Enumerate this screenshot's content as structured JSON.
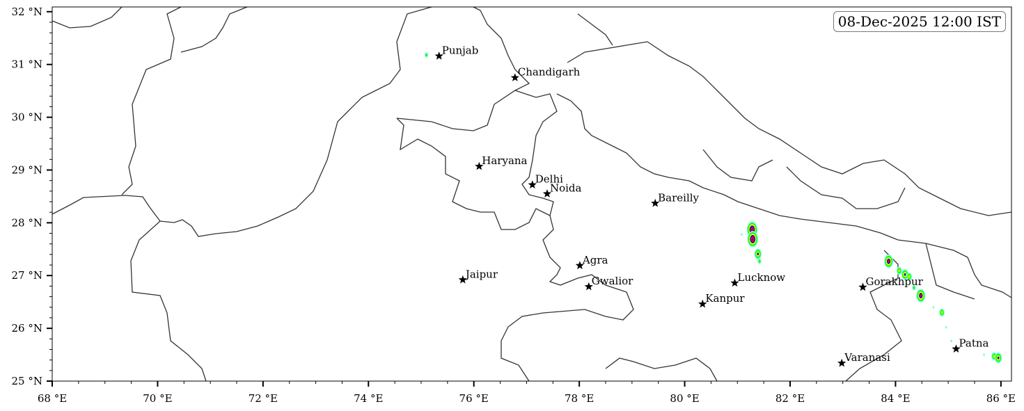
{
  "map": {
    "timestamp": "08-Dec-2025 12:00 IST",
    "extent": {
      "lon": [
        68,
        86.2
      ],
      "lat": [
        25,
        32.09
      ]
    },
    "x_ticks": [
      {
        "v": 68,
        "label": "68 °E"
      },
      {
        "v": 70,
        "label": "70 °E"
      },
      {
        "v": 72,
        "label": "72 °E"
      },
      {
        "v": 74,
        "label": "74 °E"
      },
      {
        "v": 76,
        "label": "76 °E"
      },
      {
        "v": 78,
        "label": "78 °E"
      },
      {
        "v": 80,
        "label": "80 °E"
      },
      {
        "v": 82,
        "label": "82 °E"
      },
      {
        "v": 84,
        "label": "84 °E"
      },
      {
        "v": 86,
        "label": "86 °E"
      }
    ],
    "y_ticks": [
      {
        "v": 25,
        "label": "25 °N"
      },
      {
        "v": 26,
        "label": "26 °N"
      },
      {
        "v": 27,
        "label": "27 °N"
      },
      {
        "v": 28,
        "label": "28 °N"
      },
      {
        "v": 29,
        "label": "29 °N"
      },
      {
        "v": 30,
        "label": "30 °N"
      },
      {
        "v": 31,
        "label": "31 °N"
      },
      {
        "v": 32,
        "label": "32 °N"
      }
    ],
    "x_minor_step": 0.5,
    "y_minor_step": 0.2,
    "boundary_color": "#333333",
    "marker_icon": "star-icon",
    "cities": [
      {
        "name": "Punjab",
        "lon": 75.34,
        "lat": 31.16
      },
      {
        "name": "Chandigarh",
        "lon": 76.78,
        "lat": 30.75
      },
      {
        "name": "Haryana",
        "lon": 76.1,
        "lat": 29.07
      },
      {
        "name": "Delhi",
        "lon": 77.11,
        "lat": 28.72
      },
      {
        "name": "Noida",
        "lon": 77.39,
        "lat": 28.55
      },
      {
        "name": "Bareilly",
        "lon": 79.44,
        "lat": 28.37
      },
      {
        "name": "Agra",
        "lon": 78.01,
        "lat": 27.19
      },
      {
        "name": "Jaipur",
        "lon": 75.79,
        "lat": 26.92
      },
      {
        "name": "Gwalior",
        "lon": 78.18,
        "lat": 26.79
      },
      {
        "name": "Lucknow",
        "lon": 80.95,
        "lat": 26.86
      },
      {
        "name": "Kanpur",
        "lon": 80.34,
        "lat": 26.46
      },
      {
        "name": "Gorakhpur",
        "lon": 83.38,
        "lat": 26.78
      },
      {
        "name": "Varanasi",
        "lon": 82.98,
        "lat": 25.34
      },
      {
        "name": "Patna",
        "lon": 85.15,
        "lat": 25.61
      }
    ],
    "rain_colors": [
      "#7fffd4",
      "#00ff00",
      "#ffff00",
      "#0000ff",
      "#ff0000",
      "#8b008b"
    ],
    "rain_cells": [
      {
        "lon": 75.1,
        "lat": 31.18,
        "level": 1
      },
      {
        "lon": 81.28,
        "lat": 27.87,
        "level": 5
      },
      {
        "lon": 81.29,
        "lat": 27.69,
        "level": 5
      },
      {
        "lon": 81.08,
        "lat": 27.78,
        "level": 0
      },
      {
        "lon": 81.39,
        "lat": 27.41,
        "level": 3
      },
      {
        "lon": 81.42,
        "lat": 27.27,
        "level": 1
      },
      {
        "lon": 83.87,
        "lat": 27.27,
        "level": 4
      },
      {
        "lon": 84.07,
        "lat": 27.09,
        "level": 2
      },
      {
        "lon": 84.18,
        "lat": 27.02,
        "level": 3
      },
      {
        "lon": 84.26,
        "lat": 26.98,
        "level": 2
      },
      {
        "lon": 84.35,
        "lat": 26.77,
        "level": 1
      },
      {
        "lon": 84.48,
        "lat": 26.62,
        "level": 4
      },
      {
        "lon": 84.72,
        "lat": 26.4,
        "level": 0
      },
      {
        "lon": 84.88,
        "lat": 26.3,
        "level": 2
      },
      {
        "lon": 84.96,
        "lat": 26.02,
        "level": 0
      },
      {
        "lon": 85.06,
        "lat": 25.76,
        "level": 0
      },
      {
        "lon": 85.68,
        "lat": 25.5,
        "level": 0
      },
      {
        "lon": 85.87,
        "lat": 25.47,
        "level": 2
      },
      {
        "lon": 85.95,
        "lat": 25.44,
        "level": 3
      }
    ]
  }
}
